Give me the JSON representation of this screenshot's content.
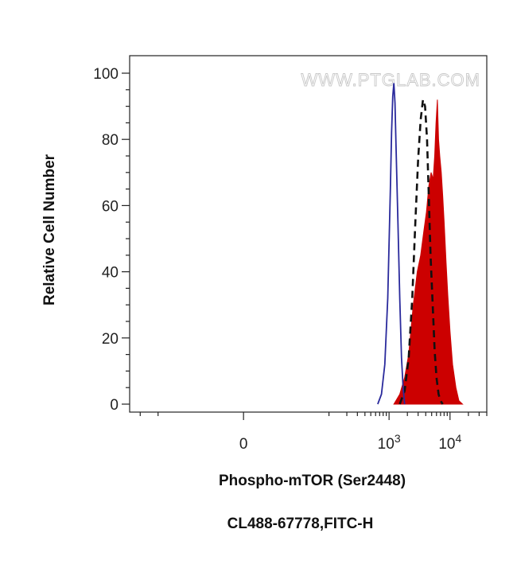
{
  "chart_data": {
    "type": "area",
    "title": "",
    "xlabel": "Phospho-mTOR (Ser2448)",
    "ylabel": "Relative Cell Number",
    "caption": "CL488-67778,FITC-H",
    "watermark": "WWW.PTGLAB.COM",
    "x_scale": "biexponential",
    "xlim": [
      -300,
      40000
    ],
    "ylim": [
      0,
      100
    ],
    "x_ticks": [
      {
        "value": 0,
        "label": "0",
        "sup": ""
      },
      {
        "value": 1000,
        "label": "10",
        "sup": "3"
      },
      {
        "value": 10000,
        "label": "10",
        "sup": "4"
      }
    ],
    "y_ticks": [
      {
        "value": 0,
        "label": "0"
      },
      {
        "value": 20,
        "label": "20"
      },
      {
        "value": 40,
        "label": "40"
      },
      {
        "value": 60,
        "label": "60"
      },
      {
        "value": 80,
        "label": "80"
      },
      {
        "value": 100,
        "label": "100"
      }
    ],
    "grid": false,
    "legend": "none",
    "series": [
      {
        "style": "filled",
        "color": "#cc0000",
        "x": [
          1200,
          1500,
          1800,
          2100,
          2500,
          2900,
          3300,
          3700,
          4100,
          4500,
          4900,
          5300,
          5600,
          5900,
          6200,
          6500,
          6800,
          7200,
          7600,
          8000,
          8600,
          9200,
          10000,
          11000,
          12500,
          14000,
          16000
        ],
        "y": [
          0,
          3,
          8,
          15,
          30,
          40,
          45,
          52,
          58,
          66,
          70,
          68,
          75,
          85,
          92,
          80,
          75,
          70,
          63,
          55,
          43,
          33,
          22,
          12,
          5,
          1,
          0
        ]
      },
      {
        "style": "dashed",
        "color": "#111111",
        "x": [
          1500,
          1800,
          2100,
          2400,
          2700,
          3000,
          3300,
          3600,
          3900,
          4200,
          4500,
          4800,
          5200,
          5600,
          6000,
          6500,
          7000,
          7600
        ],
        "y": [
          0,
          4,
          14,
          32,
          55,
          74,
          86,
          92,
          90,
          80,
          62,
          45,
          30,
          16,
          8,
          3,
          1,
          0
        ]
      },
      {
        "style": "line",
        "color": "#2a2a9c",
        "x": [
          650,
          750,
          850,
          950,
          1050,
          1100,
          1150,
          1200,
          1250,
          1300,
          1400,
          1500,
          1600,
          1700,
          1800
        ],
        "y": [
          0,
          3,
          12,
          32,
          65,
          82,
          93,
          97,
          91,
          78,
          55,
          32,
          14,
          5,
          0
        ]
      }
    ]
  }
}
